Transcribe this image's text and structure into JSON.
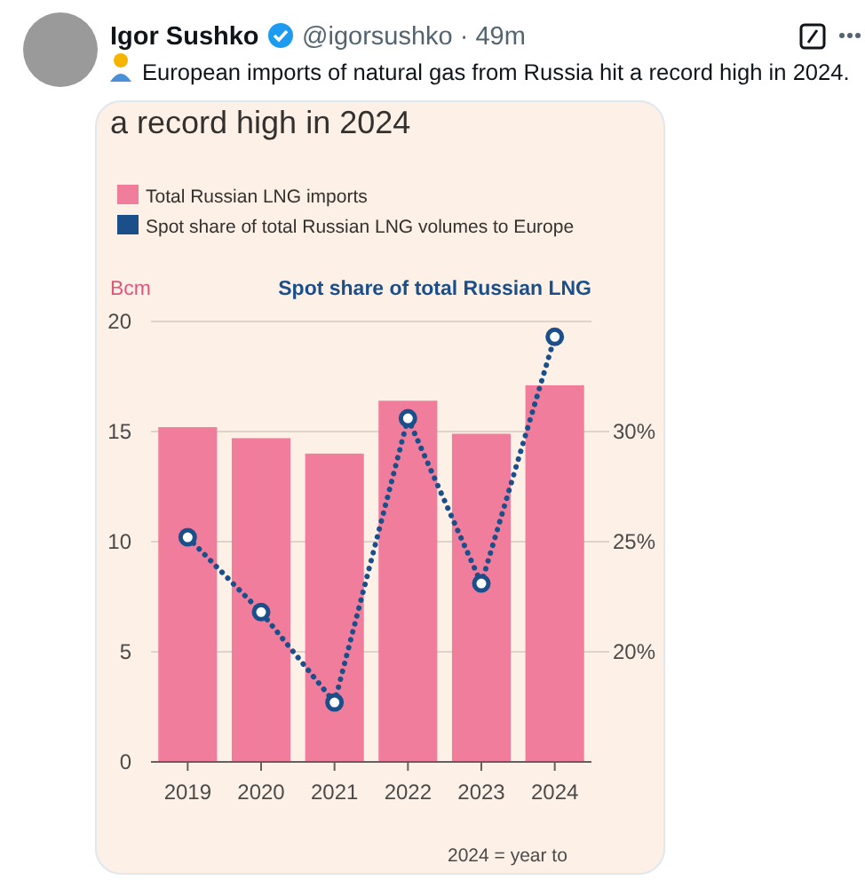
{
  "chart_data": {
    "type": "bar",
    "title": "a record high in 2024",
    "ylabel": "Bcm",
    "y2label": "Spot share of total Russian LNG",
    "annotations": [
      "Igor Sushko",
      "@igorsushko · 49m",
      "European imports of natural gas from Russia hit a record high in 2024.",
      "2024 = year to"
    ],
    "categories": [
      "2019",
      "2020",
      "2021",
      "2022",
      "2023",
      "2024"
    ],
    "series": [
      {
        "name": "Total Russian LNG imports",
        "color": "#f07d9c",
        "values": [
          15.2,
          14.7,
          14.0,
          16.4,
          14.9,
          17.1
        ]
      },
      {
        "name": "Spot share of total Russian LNG volumes to Europe",
        "type": "line",
        "axis": "y2",
        "color": "#1b4f8a",
        "values": [
          25.2,
          21.8,
          17.7,
          30.6,
          23.1,
          34.3
        ]
      }
    ],
    "ylim": [
      0,
      20
    ],
    "yticks": [
      0,
      5,
      10,
      15,
      20
    ],
    "y2lim": [
      15,
      35
    ],
    "y2ticks": [
      {
        "value": 20,
        "label": "20%"
      },
      {
        "value": 25,
        "label": "25%"
      },
      {
        "value": 30,
        "label": "30%"
      }
    ],
    "grid": "y",
    "legend": "top left",
    "marker": "circle",
    "line_style": "dotted"
  }
}
